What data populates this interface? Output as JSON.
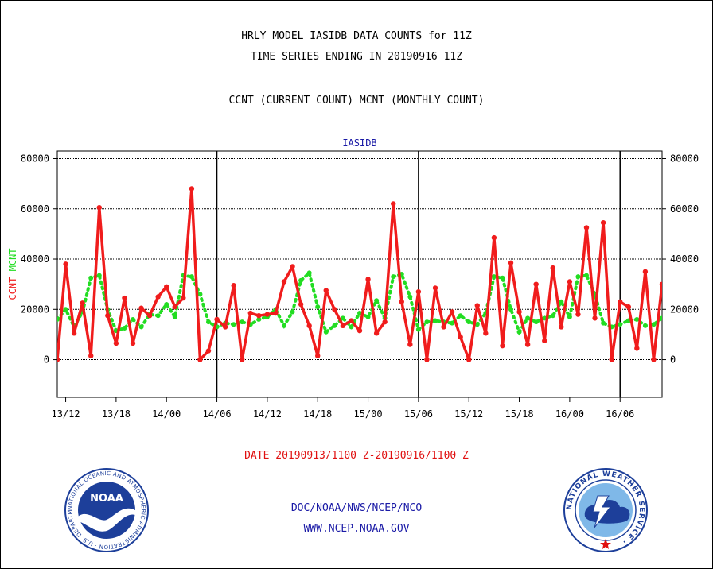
{
  "header": {
    "title_line1": "HRLY MODEL IASIDB DATA COUNTS for 11Z",
    "title_line2": "TIME SERIES ENDING IN 20190916 11Z",
    "subtitle": "CCNT (CURRENT COUNT) MCNT (MONTHLY COUNT)"
  },
  "footer": {
    "date_range": "DATE 20190913/1100 Z-20190916/1100 Z",
    "org": "DOC/NOAA/NWS/NCEP/NCO",
    "url": "WWW.NCEP.NOAA.GOV"
  },
  "logos": {
    "noaa_text": "NOAA",
    "noaa_ring": "NATIONAL OCEANIC AND ATMOSPHERIC ADMINISTRATION · U.S. DEPARTMENT OF COMMERCE ·",
    "nws_ring": "NATIONAL WEATHER SERVICE ·"
  },
  "colors": {
    "ccnt": "#f01c1c",
    "mcnt": "#22dd22",
    "label_blue": "#1a1aa6",
    "noaa_blue": "#1d3f9a"
  },
  "chart_data": {
    "type": "line",
    "title": "IASIDB",
    "ylabel_left": [
      "CCNT",
      "MCNT"
    ],
    "ylabel_right": "",
    "ylim": [
      -15000,
      83000
    ],
    "yticks": [
      0,
      20000,
      40000,
      60000,
      80000
    ],
    "ytick_labels": [
      "0",
      "20000",
      "40000",
      "60000",
      "80000"
    ],
    "x_unit": "hours since 2019-09-13 11Z",
    "xlim": [
      0,
      72
    ],
    "xticks": [
      1,
      7,
      13,
      19,
      25,
      31,
      37,
      43,
      49,
      55,
      61,
      67
    ],
    "xtick_labels": [
      "13/12",
      "13/18",
      "14/00",
      "14/06",
      "14/12",
      "14/18",
      "15/00",
      "15/06",
      "15/12",
      "15/18",
      "16/00",
      "16/06"
    ],
    "day_dividers": [
      19,
      43,
      67
    ],
    "grid": true,
    "series": [
      {
        "name": "CCNT",
        "x": [
          0,
          1,
          2,
          3,
          4,
          5,
          6,
          7,
          8,
          9,
          10,
          11,
          12,
          13,
          14,
          15,
          16,
          17,
          18,
          19,
          20,
          21,
          22,
          23,
          24,
          25,
          26,
          27,
          28,
          29,
          30,
          31,
          32,
          33,
          34,
          35,
          36,
          37,
          38,
          39,
          40,
          41,
          42,
          43,
          44,
          45,
          46,
          47,
          48,
          49,
          50,
          51,
          52,
          53,
          54,
          55,
          56,
          57,
          58,
          59,
          60,
          61,
          62,
          63,
          64,
          65,
          66,
          67,
          68,
          69,
          70,
          71,
          72
        ],
        "values": [
          0,
          38000,
          10500,
          22500,
          1500,
          60500,
          17500,
          6500,
          24500,
          6500,
          20500,
          17500,
          25000,
          29000,
          21000,
          24500,
          68000,
          0,
          3500,
          16000,
          13000,
          29500,
          0,
          18500,
          17500,
          18000,
          18500,
          31000,
          37000,
          22000,
          13500,
          1500,
          27500,
          20000,
          13500,
          15500,
          11500,
          32000,
          10500,
          15000,
          62000,
          23000,
          6000,
          27000,
          0,
          28500,
          13000,
          19000,
          9000,
          0,
          21500,
          10500,
          48500,
          5500,
          38500,
          19000,
          6000,
          30000,
          7500,
          36500,
          13000,
          31000,
          18000,
          52500,
          16500,
          54500,
          0,
          23000,
          21000,
          4500,
          35000,
          0,
          30000
        ]
      },
      {
        "name": "MCNT",
        "x": [
          0,
          1,
          2,
          3,
          4,
          5,
          6,
          7,
          8,
          9,
          10,
          11,
          12,
          13,
          14,
          15,
          16,
          17,
          18,
          19,
          20,
          21,
          22,
          23,
          24,
          25,
          26,
          27,
          28,
          29,
          30,
          31,
          32,
          33,
          34,
          35,
          36,
          37,
          38,
          39,
          40,
          41,
          42,
          43,
          44,
          45,
          46,
          47,
          48,
          49,
          50,
          51,
          52,
          53,
          54,
          55,
          56,
          57,
          58,
          59,
          60,
          61,
          62,
          63,
          64,
          65,
          66,
          67,
          68,
          69,
          70,
          71,
          72
        ],
        "values": [
          16000,
          20000,
          13000,
          19000,
          32500,
          33500,
          20000,
          11500,
          12500,
          16000,
          13000,
          18000,
          17500,
          22000,
          17000,
          33500,
          33000,
          26000,
          15000,
          13000,
          14500,
          14000,
          15000,
          14000,
          16000,
          17000,
          20000,
          13500,
          19000,
          31500,
          34500,
          21000,
          11000,
          13500,
          16500,
          13000,
          18500,
          17000,
          23500,
          16500,
          33000,
          34000,
          25000,
          12000,
          15000,
          15500,
          15000,
          14500,
          17500,
          15000,
          14000,
          18500,
          33000,
          32500,
          20000,
          11000,
          16500,
          15000,
          16500,
          17500,
          23000,
          17000,
          33000,
          33500,
          26000,
          14500,
          13000,
          14000,
          15500,
          16000,
          13500,
          14000,
          16500
        ]
      }
    ]
  }
}
